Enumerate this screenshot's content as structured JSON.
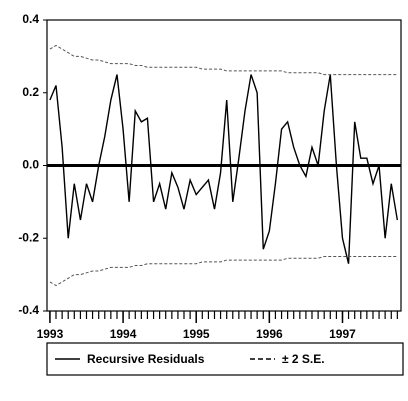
{
  "chart_data": {
    "type": "line",
    "x": [
      1993.0,
      1993.083,
      1993.167,
      1993.25,
      1993.333,
      1993.417,
      1993.5,
      1993.583,
      1993.667,
      1993.75,
      1993.833,
      1993.917,
      1994.0,
      1994.083,
      1994.167,
      1994.25,
      1994.333,
      1994.417,
      1994.5,
      1994.583,
      1994.667,
      1994.75,
      1994.833,
      1994.917,
      1995.0,
      1995.083,
      1995.167,
      1995.25,
      1995.333,
      1995.417,
      1995.5,
      1995.583,
      1995.667,
      1995.75,
      1995.833,
      1995.917,
      1996.0,
      1996.083,
      1996.167,
      1996.25,
      1996.333,
      1996.417,
      1996.5,
      1996.583,
      1996.667,
      1996.75,
      1996.833,
      1996.917,
      1997.0,
      1997.083,
      1997.167,
      1997.25,
      1997.333,
      1997.417,
      1997.5,
      1997.583,
      1997.667,
      1997.75
    ],
    "series": [
      {
        "name": "Recursive Residuals",
        "color": "#000000",
        "values": [
          0.18,
          0.22,
          0.05,
          -0.2,
          -0.05,
          -0.15,
          -0.05,
          -0.1,
          0.0,
          0.08,
          0.18,
          0.25,
          0.1,
          -0.1,
          0.15,
          0.12,
          0.13,
          -0.1,
          -0.05,
          -0.12,
          -0.02,
          -0.06,
          -0.12,
          -0.04,
          -0.08,
          -0.06,
          -0.04,
          -0.12,
          -0.02,
          0.18,
          -0.1,
          0.02,
          0.15,
          0.25,
          0.2,
          -0.23,
          -0.18,
          -0.05,
          0.1,
          0.12,
          0.05,
          0.0,
          -0.03,
          0.05,
          0.0,
          0.15,
          0.25,
          0.0,
          -0.2,
          -0.27,
          0.12,
          0.02,
          0.02,
          -0.05,
          0.0,
          -0.2,
          -0.05,
          -0.15
        ]
      },
      {
        "name": "± 2 S.E.",
        "color": "#555555",
        "values": [
          0.32,
          0.33,
          0.32,
          0.31,
          0.3,
          0.3,
          0.295,
          0.29,
          0.29,
          0.285,
          0.28,
          0.28,
          0.28,
          0.28,
          0.275,
          0.275,
          0.27,
          0.27,
          0.27,
          0.27,
          0.27,
          0.27,
          0.27,
          0.27,
          0.27,
          0.265,
          0.265,
          0.265,
          0.265,
          0.26,
          0.26,
          0.26,
          0.26,
          0.26,
          0.26,
          0.26,
          0.26,
          0.26,
          0.26,
          0.255,
          0.255,
          0.255,
          0.255,
          0.255,
          0.255,
          0.25,
          0.25,
          0.25,
          0.25,
          0.25,
          0.25,
          0.25,
          0.25,
          0.25,
          0.25,
          0.25,
          0.25,
          0.25
        ],
        "lower": [
          -0.32,
          -0.33,
          -0.32,
          -0.31,
          -0.3,
          -0.3,
          -0.295,
          -0.29,
          -0.29,
          -0.285,
          -0.28,
          -0.28,
          -0.28,
          -0.28,
          -0.275,
          -0.275,
          -0.27,
          -0.27,
          -0.27,
          -0.27,
          -0.27,
          -0.27,
          -0.27,
          -0.27,
          -0.27,
          -0.265,
          -0.265,
          -0.265,
          -0.265,
          -0.26,
          -0.26,
          -0.26,
          -0.26,
          -0.26,
          -0.26,
          -0.26,
          -0.26,
          -0.26,
          -0.26,
          -0.255,
          -0.255,
          -0.255,
          -0.255,
          -0.255,
          -0.255,
          -0.25,
          -0.25,
          -0.25,
          -0.25,
          -0.25,
          -0.25,
          -0.25,
          -0.25,
          -0.25,
          -0.25,
          -0.25,
          -0.25,
          -0.25
        ]
      }
    ],
    "xlim": [
      1992.96,
      1997.8
    ],
    "xticks": [
      1993,
      1994,
      1995,
      1996,
      1997
    ],
    "ylim": [
      -0.4,
      0.4
    ],
    "yticks": [
      0.4,
      0.2,
      {
        "value": 0,
        "label": "0.0"
      },
      -0.2,
      -0.4
    ]
  }
}
